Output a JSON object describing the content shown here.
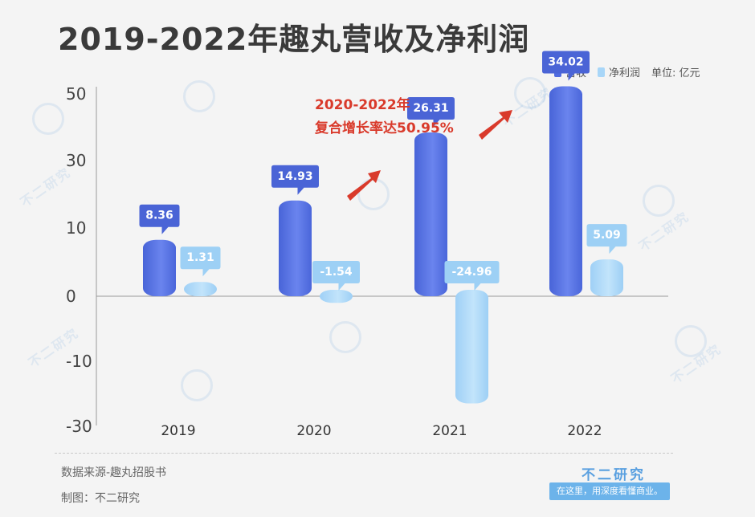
{
  "title": "2019-2022年趣丸营收及净利润",
  "legend": {
    "revenue": "营收",
    "profit": "净利润",
    "unit": "单位: 亿元"
  },
  "annotation": {
    "line1": "2020-2022年",
    "line2": "复合增长率达50.95%"
  },
  "footer": {
    "source": "数据来源-趣丸招股书",
    "maker": "制图：不二研究",
    "brand": "不二研究",
    "slogan": "在这里，用深度看懂商业。"
  },
  "colors": {
    "revenue": "#4f6be0",
    "profit": "#a8d6f8",
    "label_revenue_bg": "#4a64d6",
    "label_profit_bg": "#9dd0f5",
    "arrow": "#d93a2b"
  },
  "chart_data": {
    "type": "bar",
    "categories": [
      "2019",
      "2020",
      "2021",
      "2022"
    ],
    "series": [
      {
        "name": "营收",
        "values": [
          8.36,
          14.93,
          26.31,
          34.02
        ]
      },
      {
        "name": "净利润",
        "values": [
          1.31,
          -1.54,
          -24.96,
          5.09
        ]
      }
    ],
    "data_labels": {
      "revenue": [
        "8.36",
        "14.93",
        "26.31",
        "34.02"
      ],
      "profit": [
        "1.31",
        "-1.54",
        "-24.96",
        "5.09"
      ]
    },
    "yticks": [
      "50",
      "30",
      "10",
      "0",
      "-10",
      "-30"
    ],
    "ylabel": "",
    "xlabel": "",
    "legend_position": "top-right",
    "grid": false
  }
}
